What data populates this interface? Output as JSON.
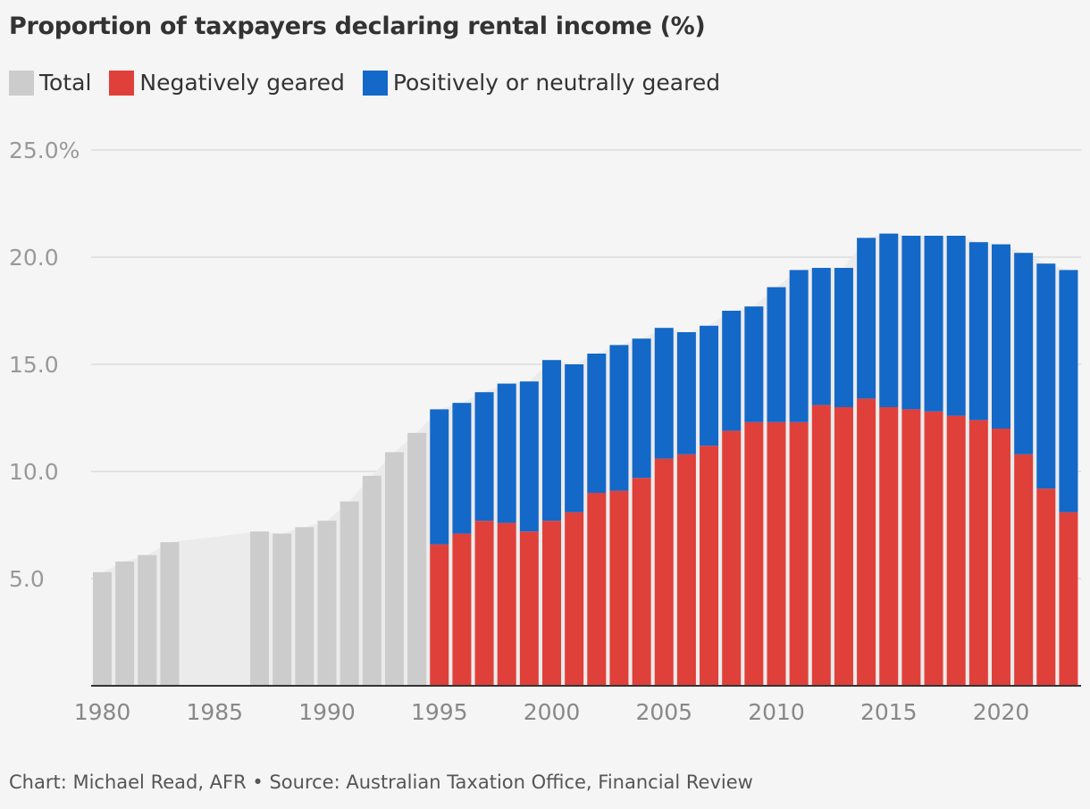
{
  "chart_data": {
    "type": "bar",
    "stacked": true,
    "title": "Proportion of taxpayers declaring rental income (%)",
    "xlabel": "",
    "ylabel": "",
    "x_tick_labels": [
      "1980",
      "1985",
      "1990",
      "1995",
      "2000",
      "2005",
      "2010",
      "2015",
      "2020"
    ],
    "y_tick_labels": [
      "25.0%",
      "20.0",
      "15.0",
      "10.0",
      "5.0"
    ],
    "y_ticks": [
      25,
      20,
      15,
      10,
      5
    ],
    "ylim": [
      0,
      25
    ],
    "xlim": [
      1979,
      2023
    ],
    "grid": true,
    "legend_position": "top-left",
    "legend": [
      {
        "label": "Total",
        "color": "#cccccc"
      },
      {
        "label": "Negatively geared",
        "color": "#e0403a"
      },
      {
        "label": "Positively or neutrally geared",
        "color": "#1468c8"
      }
    ],
    "series": [
      {
        "name": "Total",
        "color": "#cccccc",
        "points": [
          {
            "x": 1980,
            "y": 5.3
          },
          {
            "x": 1981,
            "y": 5.8
          },
          {
            "x": 1982,
            "y": 6.1
          },
          {
            "x": 1983,
            "y": 6.7
          },
          {
            "x": 1987,
            "y": 7.2
          },
          {
            "x": 1988,
            "y": 7.1
          },
          {
            "x": 1989,
            "y": 7.4
          },
          {
            "x": 1990,
            "y": 7.7
          },
          {
            "x": 1991,
            "y": 8.6
          },
          {
            "x": 1992,
            "y": 9.8
          },
          {
            "x": 1993,
            "y": 10.9
          },
          {
            "x": 1994,
            "y": 11.8
          }
        ]
      },
      {
        "name": "Negatively geared",
        "color": "#e0403a",
        "x": [
          1995,
          1996,
          1997,
          1998,
          1999,
          2000,
          2001,
          2002,
          2003,
          2004,
          2005,
          2006,
          2007,
          2008,
          2009,
          2010,
          2011,
          2012,
          2013,
          2014,
          2015,
          2016,
          2017,
          2018,
          2019,
          2020,
          2021,
          2022,
          2023
        ],
        "values": [
          6.6,
          7.1,
          7.7,
          7.6,
          7.2,
          7.7,
          8.1,
          9.0,
          9.1,
          9.7,
          10.6,
          10.8,
          11.2,
          11.9,
          12.3,
          12.3,
          12.3,
          13.1,
          13.0,
          13.4,
          13.0,
          12.9,
          12.8,
          12.6,
          12.4,
          12.0,
          10.8,
          9.2,
          8.1
        ]
      },
      {
        "name": "Positively or neutrally geared",
        "color": "#1468c8",
        "x": [
          1995,
          1996,
          1997,
          1998,
          1999,
          2000,
          2001,
          2002,
          2003,
          2004,
          2005,
          2006,
          2007,
          2008,
          2009,
          2010,
          2011,
          2012,
          2013,
          2014,
          2015,
          2016,
          2017,
          2018,
          2019,
          2020,
          2021,
          2022,
          2023
        ],
        "values": [
          6.3,
          6.1,
          6.0,
          6.5,
          7.0,
          7.5,
          6.9,
          6.5,
          6.8,
          6.5,
          6.1,
          5.7,
          5.6,
          5.6,
          5.4,
          6.3,
          7.1,
          6.4,
          6.5,
          7.5,
          8.1,
          8.1,
          8.2,
          8.4,
          8.3,
          8.6,
          9.4,
          10.5,
          11.3
        ]
      }
    ]
  },
  "source": "Chart: Michael Read, AFR • Source: Australian Taxation Office, Financial Review"
}
